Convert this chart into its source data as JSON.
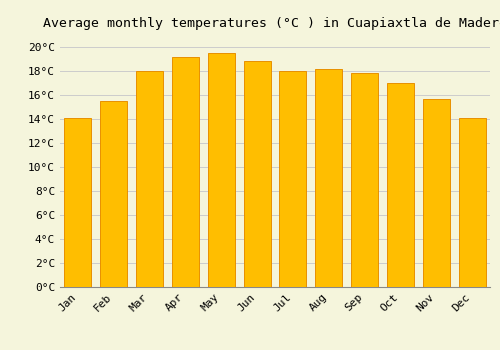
{
  "title": "Average monthly temperatures (°C ) in Cuapiaxtla de Madero",
  "months": [
    "Jan",
    "Feb",
    "Mar",
    "Apr",
    "May",
    "Jun",
    "Jul",
    "Aug",
    "Sep",
    "Oct",
    "Nov",
    "Dec"
  ],
  "values": [
    14.1,
    15.5,
    18.0,
    19.2,
    19.5,
    18.8,
    18.0,
    18.2,
    17.8,
    17.0,
    15.7,
    14.1
  ],
  "bar_color": "#FFBE00",
  "bar_edge_color": "#E89000",
  "background_color": "#F5F5DC",
  "grid_color": "#CCCCCC",
  "ytick_labels": [
    "0°C",
    "2°C",
    "4°C",
    "6°C",
    "8°C",
    "10°C",
    "12°C",
    "14°C",
    "16°C",
    "18°C",
    "20°C"
  ],
  "ytick_values": [
    0,
    2,
    4,
    6,
    8,
    10,
    12,
    14,
    16,
    18,
    20
  ],
  "ylim": [
    0,
    21
  ],
  "title_fontsize": 9.5,
  "tick_fontsize": 8,
  "font_family": "monospace"
}
